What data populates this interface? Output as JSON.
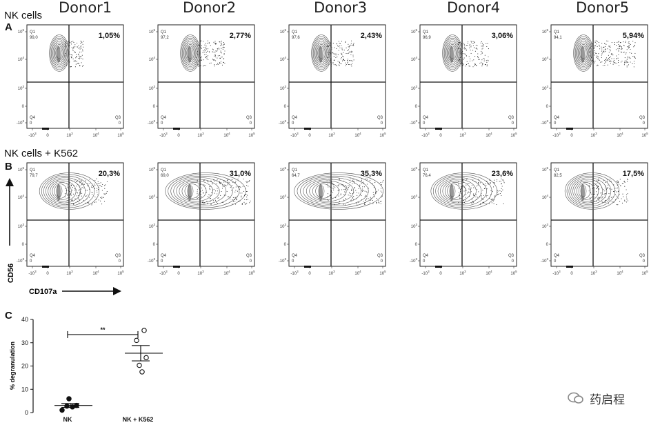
{
  "header": {
    "donors": [
      "Donor1",
      "Donor2",
      "Donor3",
      "Donor4",
      "Donor5"
    ],
    "panel_a": "A",
    "panel_b": "B",
    "panel_c": "C",
    "row_a_title": "NK cells",
    "row_b_title": "NK cells + K562"
  },
  "axes": {
    "y_label": "CD56",
    "x_label": "CD107a",
    "y_ticks": [
      "10^5",
      "10^4",
      "10^3",
      "0",
      "-10^3"
    ],
    "x_ticks": [
      "-10^3",
      "0",
      "10^3",
      "10^4",
      "10^5"
    ]
  },
  "rows": [
    {
      "name": "NK cells",
      "plots": [
        {
          "q1": "99,0",
          "q2": "1,05%",
          "q3": "0",
          "q4": "0"
        },
        {
          "q1": "97,2",
          "q2": "2,77%",
          "q3": "0",
          "q4": "0"
        },
        {
          "q1": "97,6",
          "q2": "2,43%",
          "q3": "0",
          "q4": "0"
        },
        {
          "q1": "96,9",
          "q2": "3,06%",
          "q3": "0",
          "q4": "0"
        },
        {
          "q1": "94,1",
          "q2": "5,94%",
          "q3": "0",
          "q4": "0"
        }
      ]
    },
    {
      "name": "NK cells + K562",
      "plots": [
        {
          "q1": "79,7",
          "q2": "20,3%",
          "q3": "0",
          "q4": "0"
        },
        {
          "q1": "69,0",
          "q2": "31,0%",
          "q3": "0",
          "q4": "0"
        },
        {
          "q1": "64,7",
          "q2": "35,3%",
          "q3": "0",
          "q4": "0"
        },
        {
          "q1": "76,4",
          "q2": "23,6%",
          "q3": "0",
          "q4": "0"
        },
        {
          "q1": "82,5",
          "q2": "17,5%",
          "q3": "0",
          "q4": "0"
        }
      ]
    }
  ],
  "quadrant_labels": {
    "q1": "Q1",
    "q3": "Q3",
    "q4": "Q4"
  },
  "chart_data": {
    "type": "scatter",
    "categories": [
      "NK",
      "NK + K562"
    ],
    "ylabel": "% degranulation",
    "ylim": [
      0,
      40
    ],
    "yticks": [
      0,
      10,
      20,
      30,
      40
    ],
    "significance": "**",
    "series": [
      {
        "values": [
          1.05,
          2.77,
          2.43,
          3.06,
          5.94
        ],
        "mean": 3.05,
        "sem_low": 2.2,
        "sem_high": 3.9,
        "marker": "filled"
      },
      {
        "values": [
          20.3,
          31.0,
          35.3,
          23.6,
          17.5
        ],
        "mean": 25.5,
        "sem_low": 22.2,
        "sem_high": 28.8,
        "marker": "open"
      }
    ]
  },
  "watermark": {
    "text": "药启程"
  }
}
